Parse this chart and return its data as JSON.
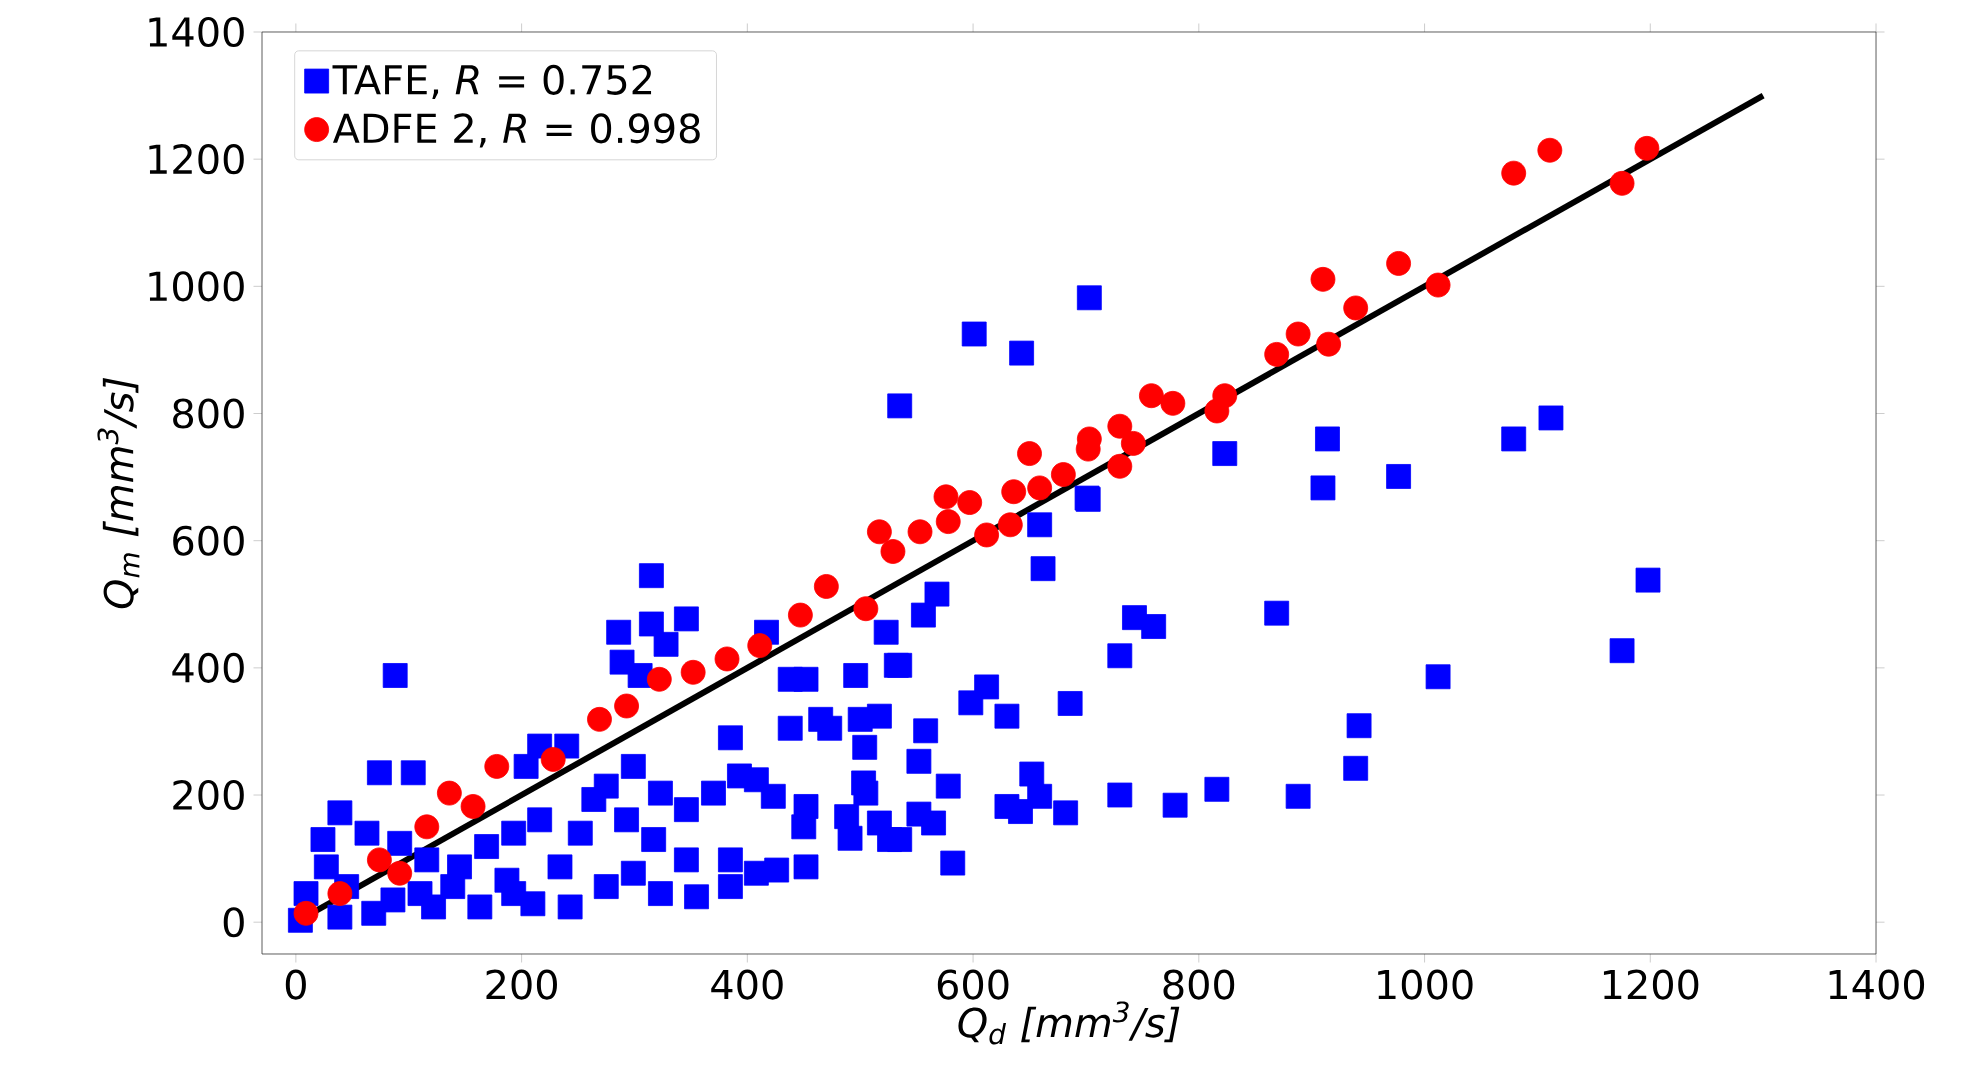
{
  "chart_data": {
    "type": "scatter",
    "xlabel": "Q$_{d}$ [mm$^{3}$/s]",
    "ylabel": "Q$_{m}$ [mm$^{3}$/s]",
    "xlim": [
      -30,
      1400
    ],
    "ylim": [
      -50,
      1400
    ],
    "xticks": [
      0,
      200,
      400,
      600,
      800,
      1000,
      1200,
      1400
    ],
    "yticks": [
      0,
      200,
      400,
      600,
      800,
      1000,
      1200,
      1400
    ],
    "legend": "top left",
    "series": [
      {
        "name": "TAFE, *R* = 0.752",
        "color": "#0000ff",
        "marker": "square",
        "x": [
          703,
          601,
          643,
          535,
          823,
          914,
          910,
          977,
          1079,
          1112,
          702,
          659,
          662,
          568,
          556,
          743,
          760,
          730,
          869,
          1198,
          1175,
          1012,
          942,
          939,
          888,
          816,
          779,
          730,
          682,
          686,
          612,
          598,
          630,
          558,
          552,
          578,
          552,
          565,
          630,
          642,
          652,
          659,
          582,
          535,
          535,
          88,
          315,
          346,
          286,
          315,
          328,
          289,
          305,
          417,
          438,
          452,
          496,
          532,
          523,
          701,
          438,
          465,
          473,
          500,
          517,
          504,
          503,
          505,
          517,
          526,
          488,
          491,
          452,
          426,
          408,
          450,
          452,
          423,
          393,
          408,
          385,
          370,
          346,
          323,
          299,
          275,
          385,
          385,
          355,
          323,
          299,
          275,
          243,
          210,
          187,
          163,
          139,
          104,
          74,
          39,
          24,
          63,
          92,
          116,
          27,
          9,
          45,
          86,
          122,
          216,
          240,
          204,
          264,
          252,
          216,
          193,
          169,
          145,
          234,
          193,
          317,
          346,
          293,
          110,
          69,
          39,
          4
        ],
        "values": [
          982,
          925,
          895,
          812,
          737,
          760,
          683,
          701,
          760,
          793,
          665,
          625,
          556,
          516,
          483,
          479,
          465,
          419,
          486,
          538,
          427,
          386,
          309,
          242,
          198,
          209,
          184,
          200,
          172,
          344,
          370,
          345,
          324,
          301,
          253,
          214,
          170,
          156,
          182,
          174,
          233,
          198,
          93,
          404,
          130,
          388,
          545,
          477,
          456,
          469,
          437,
          409,
          388,
          456,
          382,
          382,
          388,
          404,
          456,
          667,
          305,
          319,
          305,
          319,
          324,
          275,
          219,
          203,
          156,
          130,
          166,
          132,
          87,
          82,
          77,
          150,
          182,
          198,
          230,
          224,
          290,
          203,
          177,
          203,
          245,
          214,
          98,
          56,
          40,
          45,
          77,
          56,
          24,
          29,
          66,
          24,
          56,
          235,
          235,
          172,
          130,
          140,
          124,
          98,
          87,
          45,
          56,
          35,
          24,
          277,
          277,
          245,
          193,
          140,
          161,
          140,
          119,
          87,
          87,
          45,
          130,
          98,
          161,
          45,
          14,
          8,
          3
        ]
      },
      {
        "name": "ADFE 2, *R* = 0.998",
        "color": "#ff0000",
        "marker": "circle",
        "x": [
          1197,
          1175,
          1111,
          1079,
          1012,
          977,
          939,
          915,
          910,
          888,
          869,
          823,
          816,
          777,
          758,
          742,
          730,
          730,
          703,
          702,
          650,
          659,
          576,
          578,
          633,
          612,
          680,
          636,
          597,
          553,
          517,
          529,
          470,
          505,
          447,
          411,
          382,
          352,
          322,
          293,
          269,
          178,
          136,
          116,
          74,
          39,
          9,
          228,
          157,
          92
        ],
        "values": [
          1217,
          1162,
          1214,
          1178,
          1002,
          1036,
          966,
          909,
          1011,
          925,
          893,
          828,
          804,
          816,
          828,
          753,
          780,
          717,
          760,
          744,
          737,
          683,
          669,
          630,
          625,
          609,
          704,
          677,
          660,
          614,
          614,
          583,
          528,
          493,
          483,
          435,
          414,
          393,
          382,
          340,
          319,
          245,
          203,
          150,
          98,
          45,
          14,
          256,
          182,
          77
        ]
      },
      {
        "type": "line",
        "color": "#000000",
        "marker": "none",
        "x": [
          0,
          1300
        ],
        "values": [
          0,
          1300
        ]
      }
    ]
  }
}
